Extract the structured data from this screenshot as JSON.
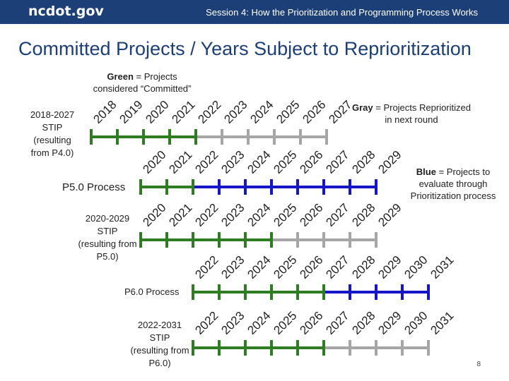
{
  "header": {
    "logo": "ncdot.gov",
    "session": "Session 4:  How the Prioritization and Programming Process Works"
  },
  "title": "Committed Projects / Years Subject to Reprioritization",
  "legend": {
    "green": {
      "keyword": "Green",
      "text": " = Projects considered “Committed”"
    },
    "gray": {
      "keyword": "Gray",
      "text": " = Projects Reprioritized in next round"
    },
    "blue": {
      "keyword": "Blue",
      "text": " = Projects to evaluate through Prioritization process"
    }
  },
  "labels": {
    "stip_2018": "2018-2027 STIP (resulting from P4.0)",
    "p5_process": "P5.0 Process",
    "stip_2020": "2020-2029 STIP (resulting from P5.0)",
    "p6_process": "P6.0 Process",
    "stip_2022": "2022-2031 STIP (resulting from P6.0)"
  },
  "colors": {
    "header_bg": "#1c3f78",
    "committed": "#2e7d23",
    "reprioritized": "#a6a6a6",
    "evaluate": "#1616c8"
  },
  "timelines": [
    {
      "id": "stip-2018-2027",
      "years": [
        "2018",
        "2019",
        "2020",
        "2021",
        "2022",
        "2023",
        "2024",
        "2025",
        "2026",
        "2027"
      ],
      "status": [
        "committed",
        "committed",
        "committed",
        "committed",
        "committed",
        "reprioritized",
        "reprioritized",
        "reprioritized",
        "reprioritized",
        "reprioritized"
      ]
    },
    {
      "id": "p5-process",
      "years": [
        "2020",
        "2021",
        "2022",
        "2023",
        "2024",
        "2025",
        "2026",
        "2027",
        "2028",
        "2029"
      ],
      "status": [
        "committed",
        "committed",
        "committed",
        "evaluate",
        "evaluate",
        "evaluate",
        "evaluate",
        "evaluate",
        "evaluate",
        "evaluate"
      ]
    },
    {
      "id": "stip-2020-2029",
      "years": [
        "2020",
        "2021",
        "2022",
        "2023",
        "2024",
        "2025",
        "2026",
        "2027",
        "2028",
        "2029"
      ],
      "status": [
        "committed",
        "committed",
        "committed",
        "committed",
        "committed",
        "committed",
        "reprioritized",
        "reprioritized",
        "reprioritized",
        "reprioritized"
      ]
    },
    {
      "id": "p6-process",
      "years": [
        "2022",
        "2023",
        "2024",
        "2025",
        "2026",
        "2027",
        "2028",
        "2029",
        "2030",
        "2031"
      ],
      "status": [
        "committed",
        "committed",
        "committed",
        "committed",
        "committed",
        "committed",
        "evaluate",
        "evaluate",
        "evaluate",
        "evaluate"
      ]
    },
    {
      "id": "stip-2022-2031",
      "years": [
        "2022",
        "2023",
        "2024",
        "2025",
        "2026",
        "2027",
        "2028",
        "2029",
        "2030",
        "2031"
      ],
      "status": [
        "committed",
        "committed",
        "committed",
        "committed",
        "committed",
        "committed",
        "reprioritized",
        "reprioritized",
        "reprioritized",
        "reprioritized"
      ]
    }
  ],
  "page_number": "8"
}
